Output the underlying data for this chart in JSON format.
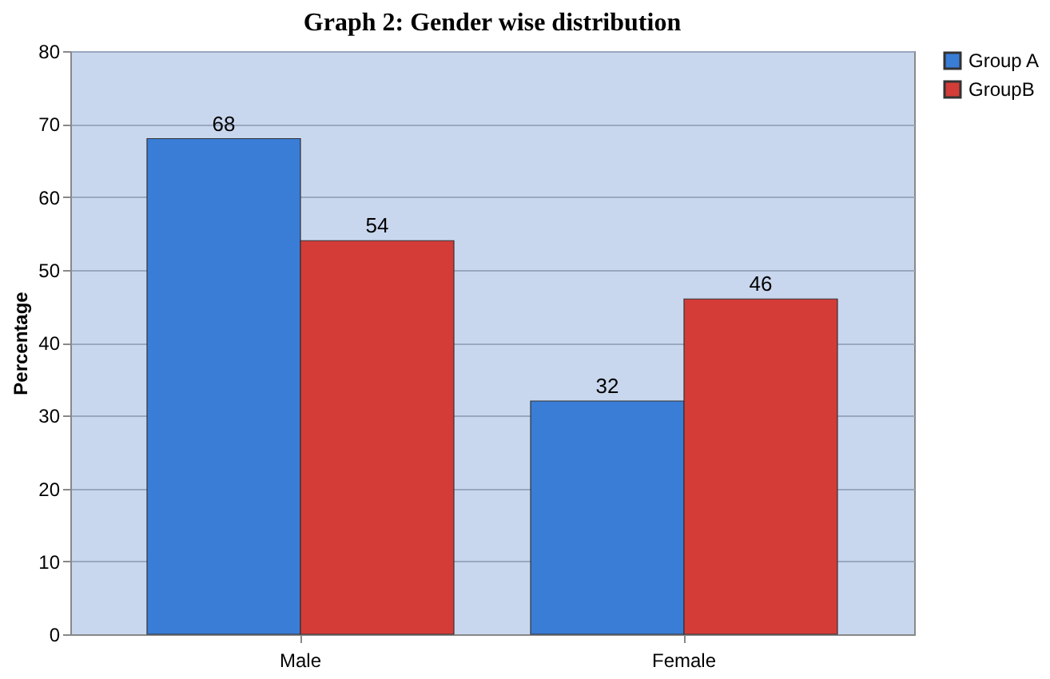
{
  "chart_data": {
    "type": "bar",
    "title": "Graph 2: Gender wise distribution",
    "ylabel": "Percentage",
    "categories": [
      "Male",
      "Female"
    ],
    "series": [
      {
        "name": "Group A",
        "color": "#3a7dd6",
        "values": [
          68,
          32
        ]
      },
      {
        "name": "GroupB",
        "color": "#d43c38",
        "values": [
          54,
          46
        ]
      }
    ],
    "ylim": [
      0,
      80
    ],
    "yticks": [
      0,
      10,
      20,
      30,
      40,
      50,
      60,
      70,
      80
    ],
    "grid": "y",
    "legend": "right",
    "data_labels": true
  }
}
